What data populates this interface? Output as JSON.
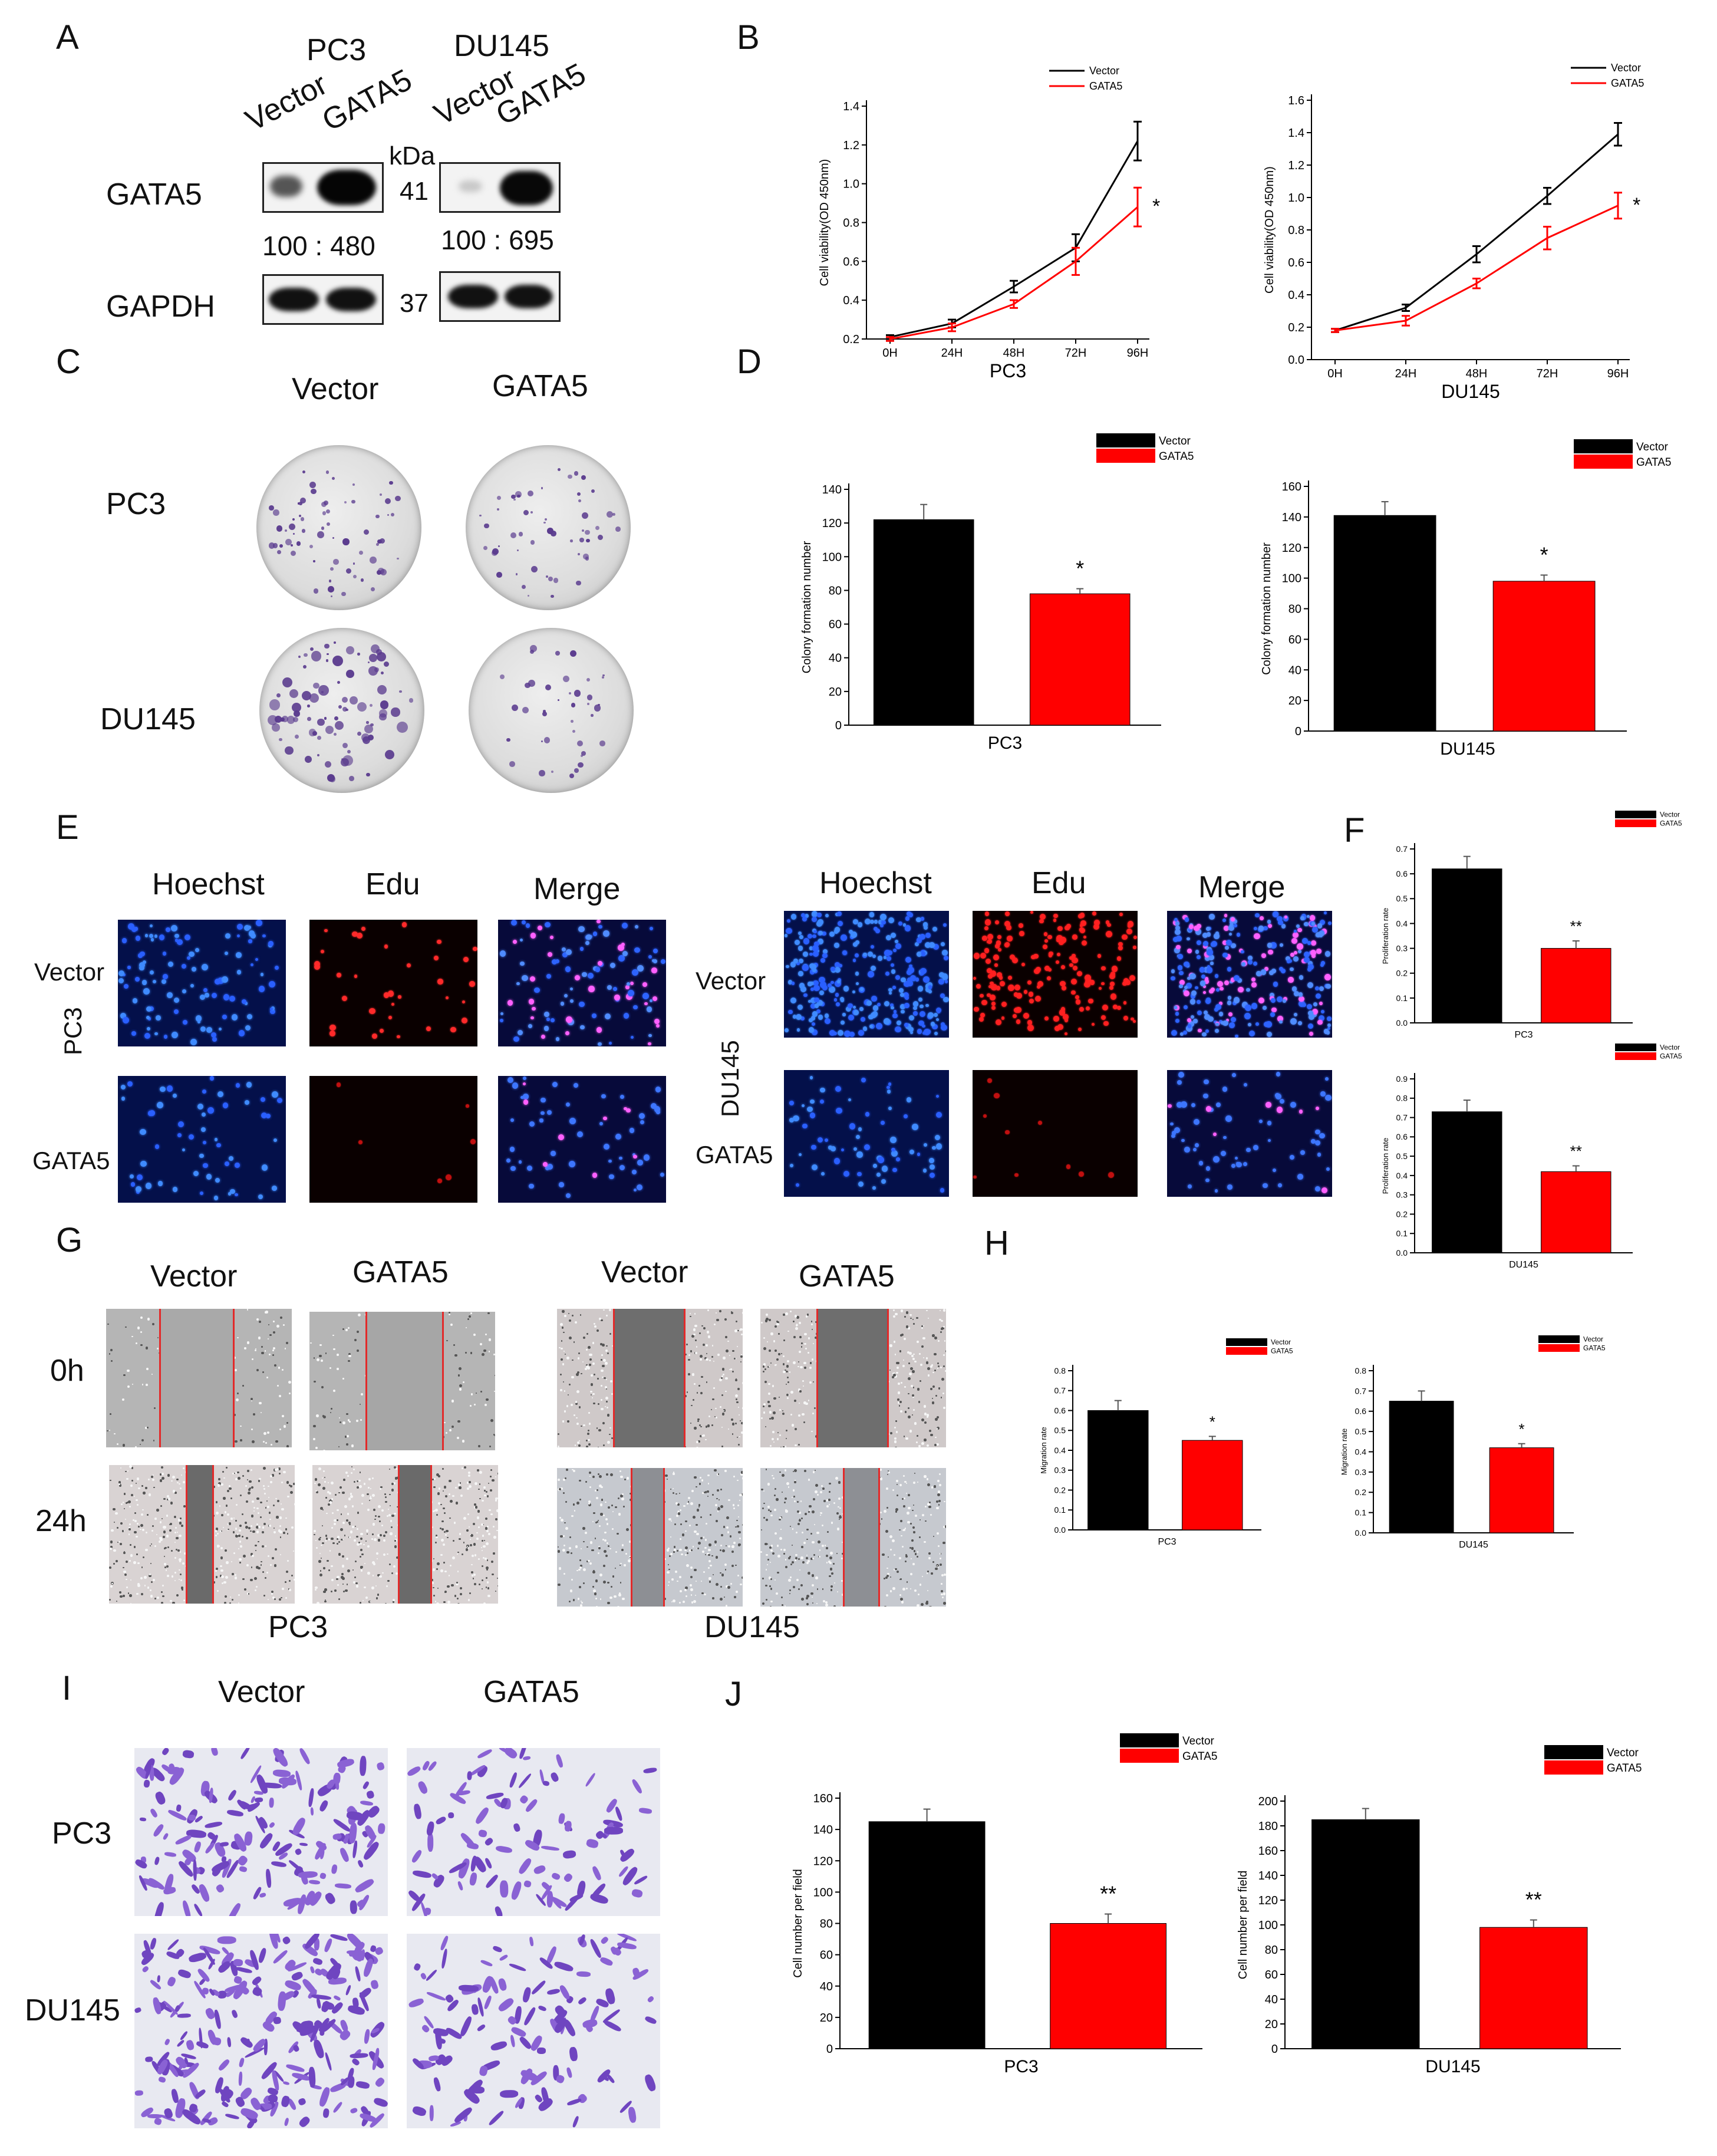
{
  "panels": {
    "A": "A",
    "B": "B",
    "C": "C",
    "D": "D",
    "E": "E",
    "F": "F",
    "G": "G",
    "H": "H",
    "I": "I",
    "J": "J"
  },
  "panel_a": {
    "pc3": "PC3",
    "du145": "DU145",
    "vector": "Vector",
    "gata5": "GATA5",
    "kda": "kDa",
    "row_gata5": "GATA5",
    "row_gapdh": "GAPDH",
    "mw_gata5": "41",
    "mw_gapdh": "37",
    "ratio_pc3": "100 : 480",
    "ratio_du145": "100 : 695"
  },
  "panel_c": {
    "vector": "Vector",
    "gata5": "GATA5",
    "pc3": "PC3",
    "du145": "DU145"
  },
  "panel_e": {
    "hoechst": "Hoechst",
    "edu": "Edu",
    "merge": "Merge",
    "vector": "Vector",
    "gata5": "GATA5",
    "pc3": "PC3",
    "du145": "DU145"
  },
  "panel_g": {
    "vector": "Vector",
    "gata5": "GATA5",
    "t0": "0h",
    "t24": "24h",
    "pc3": "PC3",
    "du145": "DU145"
  },
  "panel_i": {
    "vector": "Vector",
    "gata5": "GATA5",
    "pc3": "PC3",
    "du145": "DU145"
  },
  "colors": {
    "vector": "#000000",
    "gata5": "#ff0000",
    "crystal_violet": "#5a3b8e",
    "hoechst_blue": "#2f6bff",
    "edu_red": "#ff2020",
    "scratch_line": "#e22a2a"
  },
  "chart_data": [
    {
      "id": "B-PC3",
      "type": "line",
      "x": [
        "0H",
        "24H",
        "48H",
        "72H",
        "96H"
      ],
      "series": [
        {
          "name": "Vector",
          "values": [
            0.21,
            0.28,
            0.47,
            0.67,
            1.22
          ],
          "errors": [
            0.01,
            0.02,
            0.03,
            0.07,
            0.1
          ]
        },
        {
          "name": "GATA5",
          "values": [
            0.2,
            0.26,
            0.38,
            0.6,
            0.88
          ],
          "errors": [
            0.01,
            0.02,
            0.02,
            0.07,
            0.1
          ]
        }
      ],
      "xlabel": "PC3",
      "ylabel": "Cell viability(OD 450nm)",
      "ylim": [
        0.2,
        1.4
      ],
      "yticks": [
        "0.2",
        "0.4",
        "0.6",
        "0.8",
        "1.0",
        "1.2",
        "1.4"
      ],
      "legend": "top-right",
      "sig": "*"
    },
    {
      "id": "B-DU145",
      "type": "line",
      "x": [
        "0H",
        "24H",
        "48H",
        "72H",
        "96H"
      ],
      "series": [
        {
          "name": "Vector",
          "values": [
            0.18,
            0.32,
            0.65,
            1.01,
            1.39
          ],
          "errors": [
            0.01,
            0.02,
            0.05,
            0.05,
            0.07
          ]
        },
        {
          "name": "GATA5",
          "values": [
            0.18,
            0.24,
            0.47,
            0.75,
            0.95
          ],
          "errors": [
            0.01,
            0.03,
            0.03,
            0.07,
            0.08
          ]
        }
      ],
      "xlabel": "DU145",
      "ylabel": "Cell viability(OD 450nm)",
      "ylim": [
        0.0,
        1.6
      ],
      "yticks": [
        "0.0",
        "0.2",
        "0.4",
        "0.6",
        "0.8",
        "1.0",
        "1.2",
        "1.4",
        "1.6"
      ],
      "legend": "top-right",
      "sig": "*"
    },
    {
      "id": "D-PC3",
      "type": "bar",
      "categories": [
        "Vector",
        "GATA5"
      ],
      "values": [
        122,
        78
      ],
      "errors": [
        9,
        3
      ],
      "xlabel": "PC3",
      "ylabel": "Colony formation number",
      "ylim": [
        0,
        140
      ],
      "yticks": [
        "0",
        "20",
        "40",
        "60",
        "80",
        "100",
        "120",
        "140"
      ],
      "legend": "top-right",
      "sig": "*"
    },
    {
      "id": "D-DU145",
      "type": "bar",
      "categories": [
        "Vector",
        "GATA5"
      ],
      "values": [
        141,
        98
      ],
      "errors": [
        9,
        4
      ],
      "xlabel": "DU145",
      "ylabel": "Colony formation number",
      "ylim": [
        0,
        160
      ],
      "yticks": [
        "0",
        "20",
        "40",
        "60",
        "80",
        "100",
        "120",
        "140",
        "160"
      ],
      "legend": "top-right",
      "sig": "*"
    },
    {
      "id": "F-PC3",
      "type": "bar",
      "categories": [
        "Vector",
        "GATA5"
      ],
      "values": [
        0.62,
        0.3
      ],
      "errors": [
        0.05,
        0.03
      ],
      "xlabel": "PC3",
      "ylabel": "Proliferation rate",
      "ylim": [
        0,
        0.7
      ],
      "yticks": [
        "0.0",
        "0.1",
        "0.2",
        "0.3",
        "0.4",
        "0.5",
        "0.6",
        "0.7"
      ],
      "legend": "top-right",
      "sig": "**"
    },
    {
      "id": "F-DU145",
      "type": "bar",
      "categories": [
        "Vector",
        "GATA5"
      ],
      "values": [
        0.73,
        0.42
      ],
      "errors": [
        0.06,
        0.03
      ],
      "xlabel": "DU145",
      "ylabel": "Proliferation rate",
      "ylim": [
        0,
        0.9
      ],
      "yticks": [
        "0.0",
        "0.1",
        "0.2",
        "0.3",
        "0.4",
        "0.5",
        "0.6",
        "0.7",
        "0.8",
        "0.9"
      ],
      "legend": "top-right",
      "sig": "**"
    },
    {
      "id": "H-PC3",
      "type": "bar",
      "categories": [
        "Vector",
        "GATA5"
      ],
      "values": [
        0.6,
        0.45
      ],
      "errors": [
        0.05,
        0.02
      ],
      "xlabel": "PC3",
      "ylabel": "Migration rate",
      "ylim": [
        0,
        0.8
      ],
      "yticks": [
        "0.0",
        "0.1",
        "0.2",
        "0.3",
        "0.4",
        "0.5",
        "0.6",
        "0.7",
        "0.8"
      ],
      "legend": "top-right",
      "sig": "*"
    },
    {
      "id": "H-DU145",
      "type": "bar",
      "categories": [
        "Vector",
        "GATA5"
      ],
      "values": [
        0.65,
        0.42
      ],
      "errors": [
        0.05,
        0.02
      ],
      "xlabel": "DU145",
      "ylabel": "Migration rate",
      "ylim": [
        0,
        0.8
      ],
      "yticks": [
        "0.0",
        "0.1",
        "0.2",
        "0.3",
        "0.4",
        "0.5",
        "0.6",
        "0.7",
        "0.8"
      ],
      "legend": "top-right",
      "sig": "*"
    },
    {
      "id": "J-PC3",
      "type": "bar",
      "categories": [
        "Vector",
        "GATA5"
      ],
      "values": [
        145,
        80
      ],
      "errors": [
        8,
        6
      ],
      "xlabel": "PC3",
      "ylabel": "Cell number per field",
      "ylim": [
        0,
        160
      ],
      "yticks": [
        "0",
        "20",
        "40",
        "60",
        "80",
        "100",
        "120",
        "140",
        "160"
      ],
      "legend": "top-right",
      "sig": "**"
    },
    {
      "id": "J-DU145",
      "type": "bar",
      "categories": [
        "Vector",
        "GATA5"
      ],
      "values": [
        185,
        98
      ],
      "errors": [
        9,
        6
      ],
      "xlabel": "DU145",
      "ylabel": "Cell number per field",
      "ylim": [
        0,
        200
      ],
      "yticks": [
        "0",
        "20",
        "40",
        "60",
        "80",
        "100",
        "120",
        "140",
        "160",
        "180",
        "200"
      ],
      "legend": "top-right",
      "sig": "**"
    }
  ]
}
